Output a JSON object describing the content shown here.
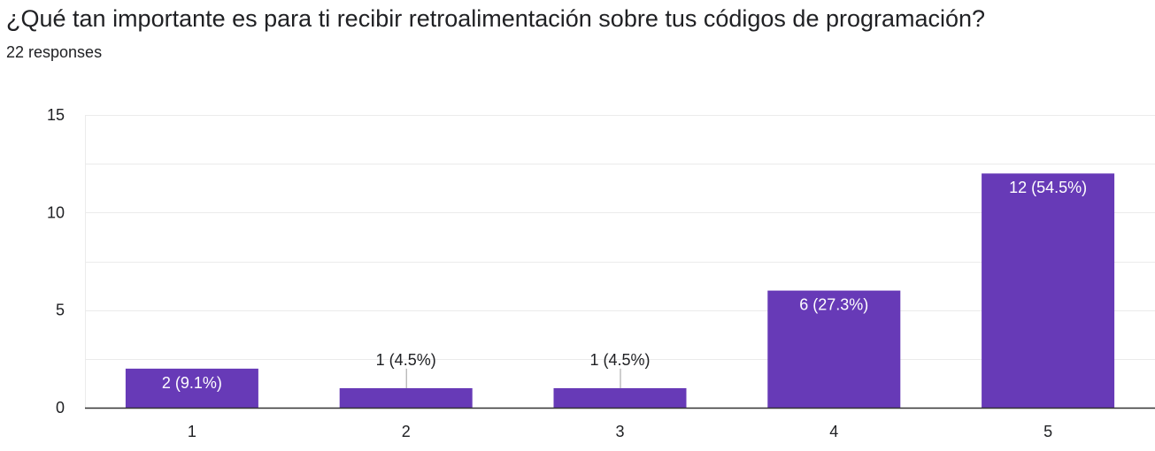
{
  "question": {
    "title": "¿Qué tan importante es para ti recibir retroalimentación sobre tus códigos de programación?",
    "responses": "22 responses"
  },
  "colors": {
    "bar": "#673ab7",
    "grid": "#ebebeb",
    "axis": "#333333",
    "text": "#202124",
    "label_inside": "#ffffff"
  },
  "chart_data": {
    "type": "bar",
    "categories": [
      "1",
      "2",
      "3",
      "4",
      "5"
    ],
    "values": [
      2,
      1,
      1,
      6,
      12
    ],
    "data_labels": [
      "2 (9.1%)",
      "1 (4.5%)",
      "1 (4.5%)",
      "6 (27.3%)",
      "12 (54.5%)"
    ],
    "ylim": [
      0,
      15
    ],
    "y_ticks": [
      "0",
      "5",
      "10",
      "15"
    ],
    "grid": true,
    "xlabel": "",
    "ylabel": ""
  }
}
